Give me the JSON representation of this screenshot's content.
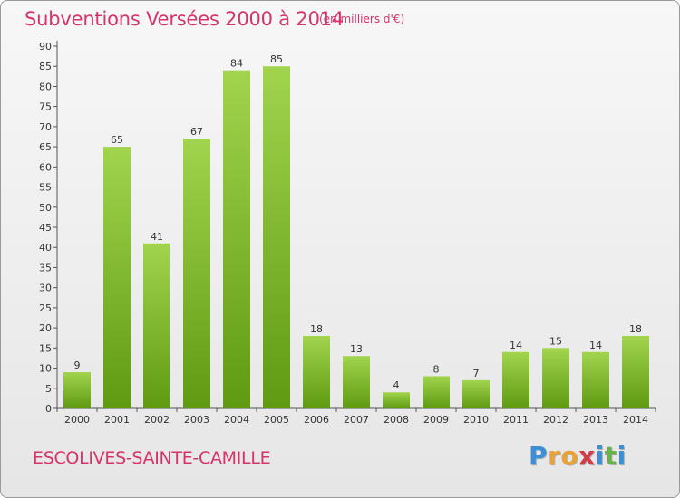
{
  "title": "Subventions Versées 2000 à 2014",
  "subtitle": "(en milliers d'€)",
  "commune": "ESCOLIVES-SAINTE-CAMILLE",
  "logo": {
    "letters": [
      "P",
      "r",
      "o",
      "x",
      "i",
      "t",
      "i"
    ],
    "colors": [
      "#3a8fd6",
      "#e8a23a",
      "#e8a23a",
      "#d33a4a",
      "#3a8fd6",
      "#6ab04c",
      "#3a8fd6"
    ]
  },
  "colors": {
    "accent": "#d6336c",
    "bar_light": "#a2d44e",
    "bar_dark": "#5f9a12"
  },
  "chart_data": {
    "type": "bar",
    "title": "Subventions Versées 2000 à 2014",
    "subtitle": "(en milliers d'€)",
    "xlabel": "",
    "ylabel": "",
    "categories": [
      "2000",
      "2001",
      "2002",
      "2003",
      "2004",
      "2005",
      "2006",
      "2007",
      "2008",
      "2009",
      "2010",
      "2011",
      "2012",
      "2013",
      "2014"
    ],
    "values": [
      9,
      65,
      41,
      67,
      84,
      85,
      18,
      13,
      4,
      8,
      7,
      14,
      15,
      14,
      18
    ],
    "ylim": [
      0,
      90
    ],
    "yticks": [
      0,
      5,
      10,
      15,
      20,
      25,
      30,
      35,
      40,
      45,
      50,
      55,
      60,
      65,
      70,
      75,
      80,
      85,
      90
    ],
    "grid": false,
    "legend": "none"
  }
}
